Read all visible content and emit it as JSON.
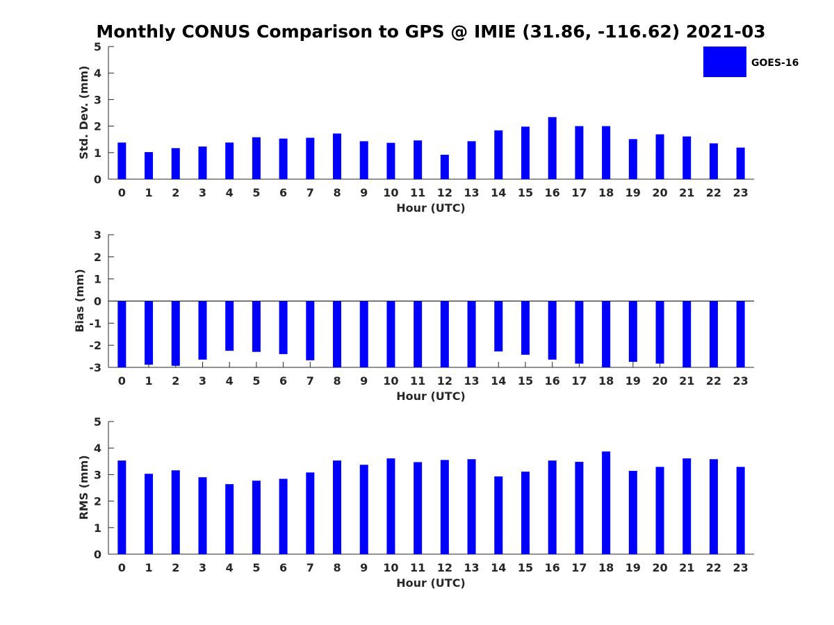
{
  "title": "Monthly CONUS Comparison to GPS @ IMIE (31.86, -116.62) 2021-03",
  "legend": {
    "label": "GOES-16",
    "color": "#0000ff",
    "placement": "top-right"
  },
  "chart_data": [
    {
      "type": "bar",
      "categories": [
        "0",
        "1",
        "2",
        "3",
        "4",
        "5",
        "6",
        "7",
        "8",
        "9",
        "10",
        "11",
        "12",
        "13",
        "14",
        "15",
        "16",
        "17",
        "18",
        "19",
        "20",
        "21",
        "22",
        "23"
      ],
      "series": [
        {
          "name": "GOES-16",
          "values": [
            1.38,
            1.02,
            1.17,
            1.23,
            1.38,
            1.58,
            1.53,
            1.56,
            1.72,
            1.43,
            1.37,
            1.46,
            0.92,
            1.43,
            1.84,
            1.98,
            2.34,
            2.0,
            2.0,
            1.51,
            1.69,
            1.61,
            1.35,
            1.19
          ]
        }
      ],
      "xlabel": "Hour (UTC)",
      "ylabel": "Std. Dev. (mm)",
      "ylim": [
        0,
        5
      ],
      "yticks": [
        "0",
        "1",
        "2",
        "3",
        "4",
        "5"
      ]
    },
    {
      "type": "bar",
      "categories": [
        "0",
        "1",
        "2",
        "3",
        "4",
        "5",
        "6",
        "7",
        "8",
        "9",
        "10",
        "11",
        "12",
        "13",
        "14",
        "15",
        "16",
        "17",
        "18",
        "19",
        "20",
        "21",
        "22",
        "23"
      ],
      "series": [
        {
          "name": "GOES-16",
          "values": [
            -3.0,
            -2.88,
            -2.93,
            -2.65,
            -2.25,
            -2.3,
            -2.4,
            -2.68,
            -3.0,
            -3.0,
            -3.0,
            -3.0,
            -3.0,
            -3.0,
            -2.28,
            -2.43,
            -2.65,
            -2.83,
            -3.0,
            -2.75,
            -2.83,
            -3.0,
            -3.0,
            -3.0
          ]
        }
      ],
      "xlabel": "Hour (UTC)",
      "ylabel": "Bias (mm)",
      "ylim": [
        -3,
        3
      ],
      "yticks": [
        "-3",
        "-2",
        "-1",
        "0",
        "1",
        "2",
        "3"
      ]
    },
    {
      "type": "bar",
      "categories": [
        "0",
        "1",
        "2",
        "3",
        "4",
        "5",
        "6",
        "7",
        "8",
        "9",
        "10",
        "11",
        "12",
        "13",
        "14",
        "15",
        "16",
        "17",
        "18",
        "19",
        "20",
        "21",
        "22",
        "23"
      ],
      "series": [
        {
          "name": "GOES-16",
          "values": [
            3.53,
            3.03,
            3.16,
            2.9,
            2.64,
            2.77,
            2.84,
            3.08,
            3.53,
            3.37,
            3.61,
            3.47,
            3.55,
            3.58,
            2.93,
            3.11,
            3.53,
            3.48,
            3.87,
            3.14,
            3.29,
            3.61,
            3.58,
            3.29
          ]
        }
      ],
      "xlabel": "Hour (UTC)",
      "ylabel": "RMS (mm)",
      "ylim": [
        0,
        5
      ],
      "yticks": [
        "0",
        "1",
        "2",
        "3",
        "4",
        "5"
      ]
    }
  ]
}
